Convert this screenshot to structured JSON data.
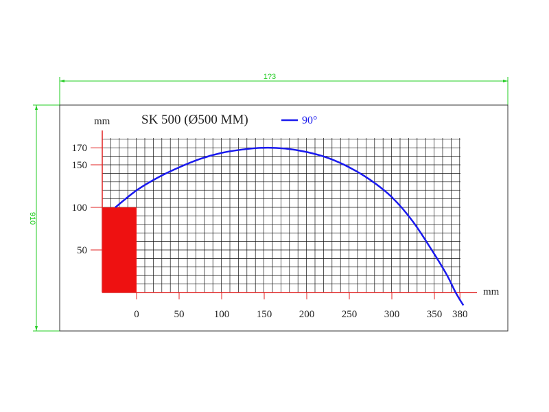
{
  "colors": {
    "curve": "#1a1aee",
    "axis": "#e02020",
    "block": "#ee1111",
    "grid": "#111111",
    "dimension": "#22cc22",
    "legend_text": "#1a1aee"
  },
  "dimension_labels": {
    "width": "1?3",
    "height": "910"
  },
  "chart_data": {
    "type": "line",
    "title": "SK 500 (Ø500 MM)",
    "xlabel": "mm",
    "ylabel": "mm",
    "x_ticks": [
      "0",
      "50",
      "100",
      "150",
      "200",
      "250",
      "300",
      "350",
      "380"
    ],
    "x_tick_values": [
      0,
      50,
      100,
      150,
      200,
      250,
      300,
      350,
      380
    ],
    "y_ticks": [
      "50",
      "100",
      "150",
      "170"
    ],
    "y_tick_values": [
      50,
      100,
      150,
      170
    ],
    "xlim": [
      -40,
      385
    ],
    "ylim": [
      0,
      180
    ],
    "grid": true,
    "legend_position": "top",
    "series": [
      {
        "name": "90°",
        "x": [
          -25,
          0,
          25,
          50,
          75,
          100,
          125,
          150,
          175,
          200,
          225,
          250,
          275,
          300,
          325,
          350,
          365,
          375,
          384
        ],
        "y": [
          100,
          120,
          135,
          147,
          157,
          164,
          168,
          170,
          169,
          165,
          158,
          147,
          132,
          112,
          83,
          45,
          20,
          0,
          -15
        ]
      }
    ],
    "block": {
      "label": "",
      "x": [
        -40,
        0
      ],
      "y": [
        0,
        100
      ]
    }
  }
}
